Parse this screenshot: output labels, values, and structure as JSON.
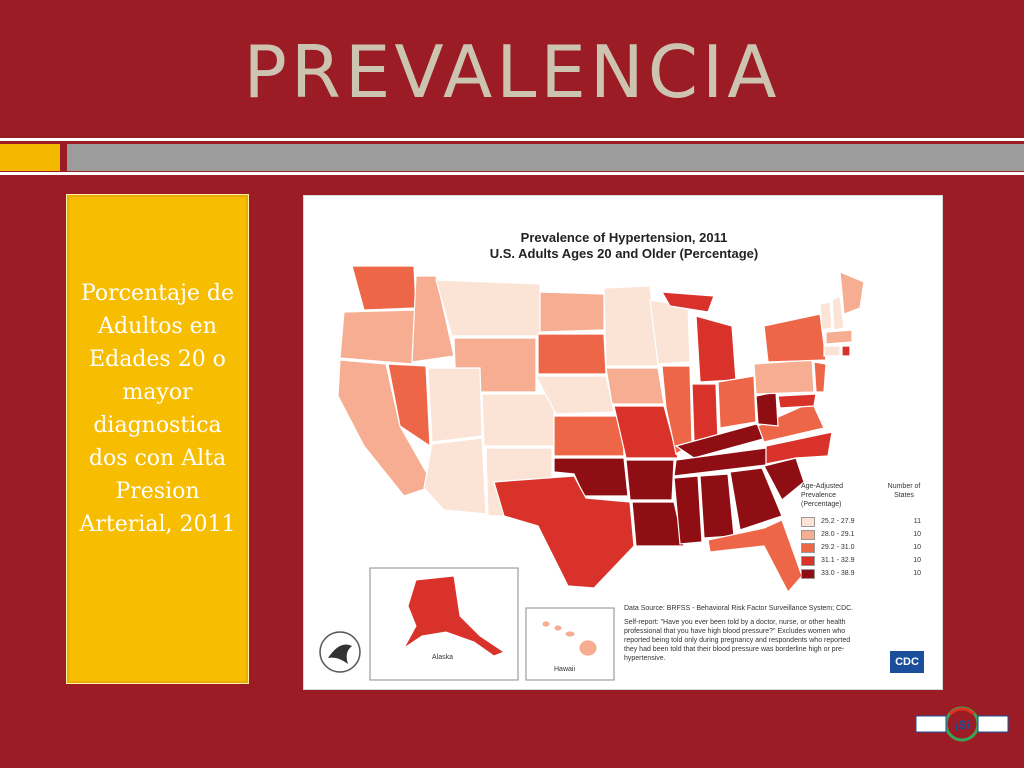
{
  "slide": {
    "title": "PREVALENCIA",
    "description": "Porcentaje de Adultos en Edades 20 o mayor diagnostica dos con Alta Presion Arterial, 2011"
  },
  "map": {
    "title_line1": "Prevalence of Hypertension, 2011",
    "title_line2": "U.S. Adults Ages 20 and Older (Percentage)",
    "legend": {
      "header_left": "Age-Adjusted Prevalence (Percentage)",
      "header_right": "Number of States",
      "rows": [
        {
          "range": "25.2 - 27.9",
          "count": "11",
          "color": "#fbe3d6"
        },
        {
          "range": "28.0 - 29.1",
          "count": "10",
          "color": "#f6ad91"
        },
        {
          "range": "29.2 - 31.0",
          "count": "10",
          "color": "#ee6648"
        },
        {
          "range": "31.1 - 32.9",
          "count": "10",
          "color": "#d9322a"
        },
        {
          "range": "33.0 - 38.9",
          "count": "10",
          "color": "#8e0e13"
        }
      ]
    },
    "inset_alaska": "Alaska",
    "inset_hawaii": "Hawaii",
    "source": "Data Source: BRFSS - Behavioral Risk Factor Surveillance System; CDC.",
    "self_report": "Self-report: \"Have you ever been told by a doctor, nurse, or other health professional that you have high blood pressure?\" Excludes women who reported being told only during pregnancy and respondents who reported they had been told that their blood pressure was borderline high or pre-hypertensive.",
    "cdc_logo": "CDC"
  },
  "colors": {
    "background": "#9b1c25",
    "title": "#ccc3b0",
    "textbox": "#f7bd00",
    "bar_gray": "#9c9c9c"
  },
  "logo": {
    "text": "¡Sí"
  }
}
